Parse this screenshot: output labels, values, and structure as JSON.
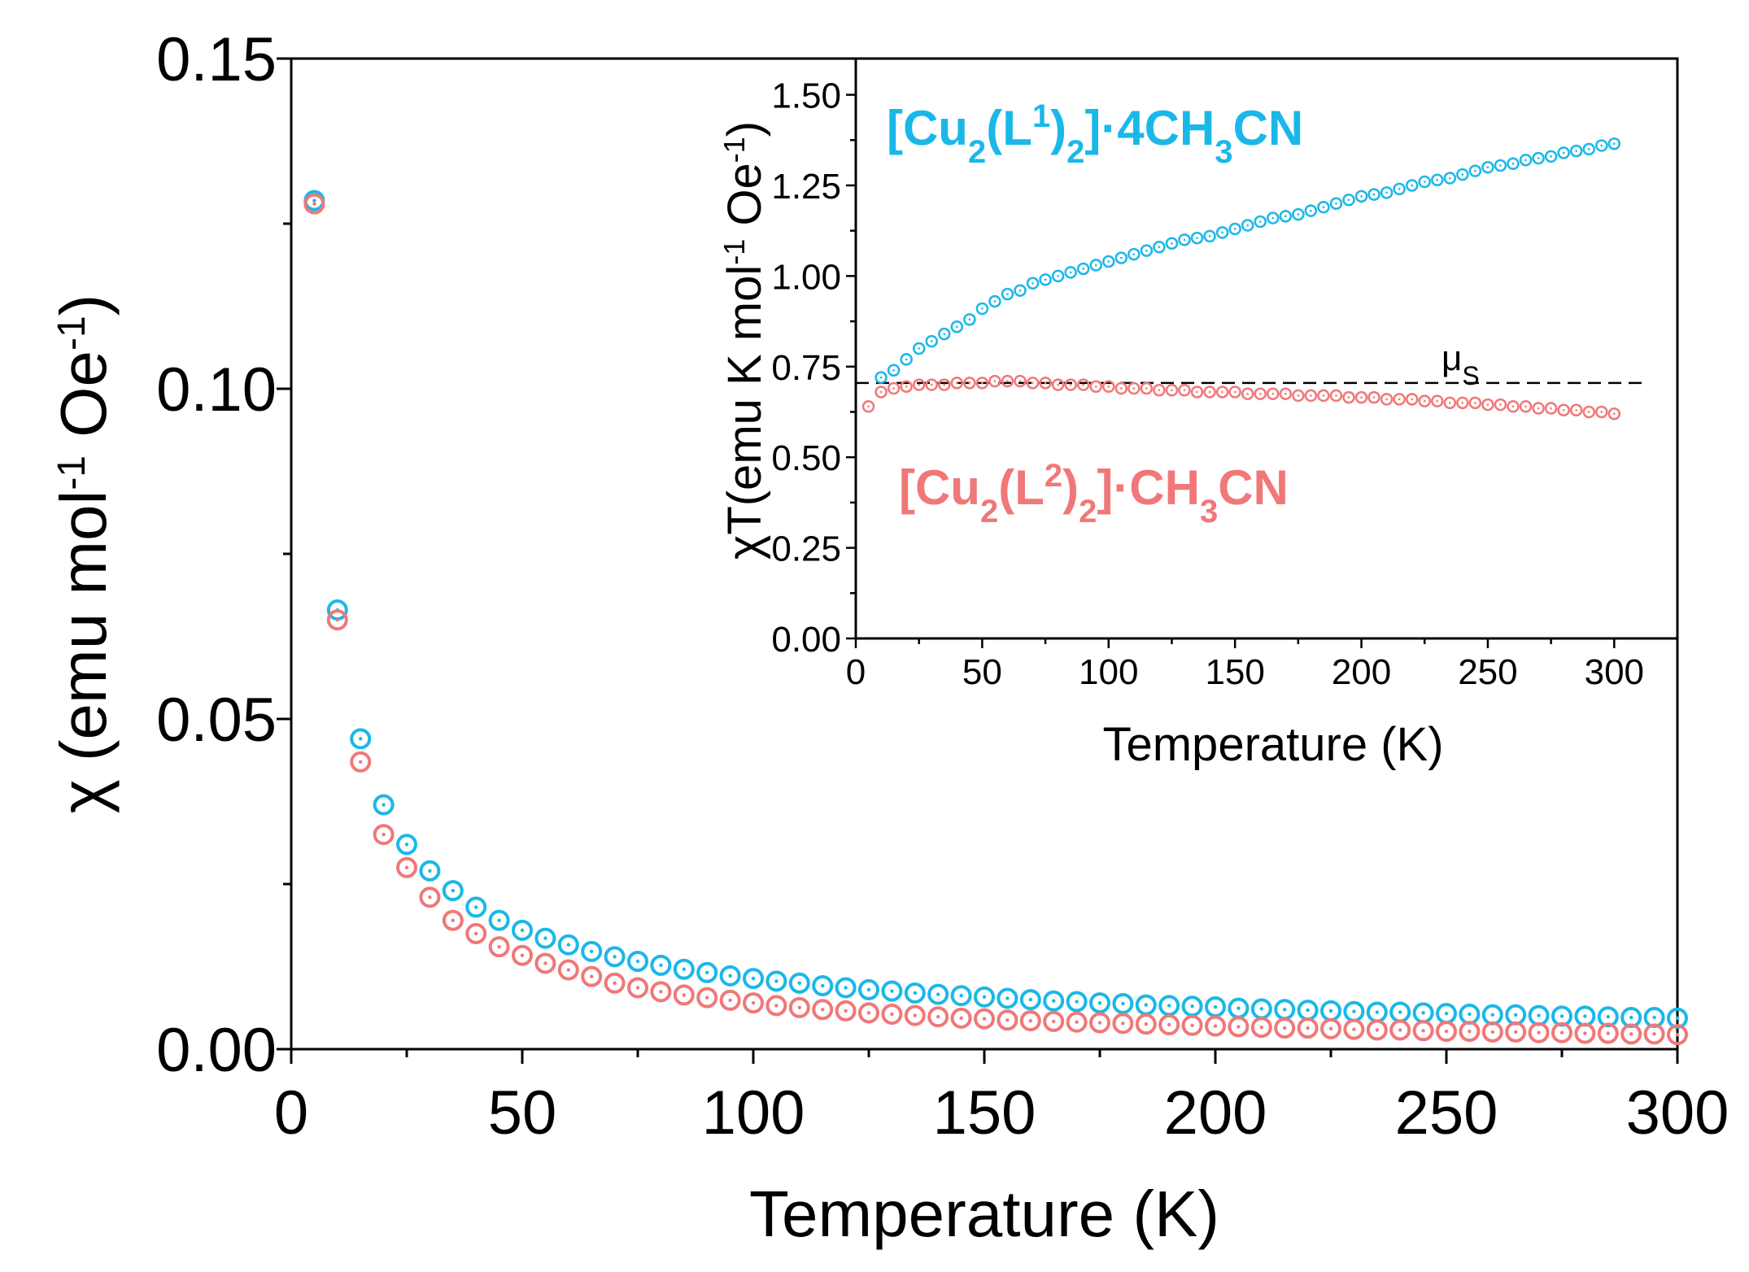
{
  "chart_data": [
    {
      "type": "scatter",
      "xlabel": "Temperature (K)",
      "ylabel": "χ (emu mol⁻¹ Oe⁻¹)",
      "ylabel_parts": {
        "prefix": "χ (emu mol",
        "sup": "-1",
        "suffix": " Oe",
        "sup2": "-1",
        "close": ")"
      },
      "xlim": [
        0,
        300
      ],
      "ylim": [
        0,
        0.15
      ],
      "x_ticks": [
        "0",
        "50",
        "100",
        "150",
        "200",
        "250",
        "300"
      ],
      "y_ticks": [
        "0.00",
        "0.05",
        "0.10",
        "0.15"
      ],
      "x_tick_values": [
        0,
        50,
        100,
        150,
        200,
        250,
        300
      ],
      "y_tick_values": [
        0,
        0.05,
        0.1,
        0.15
      ],
      "grid": false,
      "series": [
        {
          "name": "[Cu2(L1)2]·4CH3CN",
          "color": "#1ab8e8",
          "x": [
            5,
            10,
            15,
            20,
            25,
            30,
            35,
            40,
            45,
            50,
            55,
            60,
            65,
            70,
            75,
            80,
            85,
            90,
            95,
            100,
            105,
            110,
            115,
            120,
            125,
            130,
            135,
            140,
            145,
            150,
            155,
            160,
            165,
            170,
            175,
            180,
            185,
            190,
            195,
            200,
            205,
            210,
            215,
            220,
            225,
            230,
            235,
            240,
            245,
            250,
            255,
            260,
            265,
            270,
            275,
            280,
            285,
            290,
            295,
            300
          ],
          "y": [
            0.1285,
            0.0665,
            0.047,
            0.037,
            0.031,
            0.027,
            0.024,
            0.0215,
            0.0195,
            0.018,
            0.0168,
            0.0158,
            0.0148,
            0.014,
            0.0133,
            0.0127,
            0.0121,
            0.0116,
            0.0111,
            0.0107,
            0.0103,
            0.01,
            0.0096,
            0.0093,
            0.009,
            0.0088,
            0.0085,
            0.0083,
            0.0081,
            0.0079,
            0.0077,
            0.0075,
            0.0073,
            0.0072,
            0.007,
            0.0069,
            0.0067,
            0.0066,
            0.0065,
            0.0064,
            0.0062,
            0.0061,
            0.006,
            0.0059,
            0.0058,
            0.0057,
            0.0056,
            0.0056,
            0.0055,
            0.0054,
            0.0053,
            0.0052,
            0.0052,
            0.0051,
            0.005,
            0.005,
            0.0049,
            0.0048,
            0.0048,
            0.0047
          ]
        },
        {
          "name": "[Cu2(L2)2]·CH3CN",
          "color": "#f07878",
          "x": [
            5,
            10,
            15,
            20,
            25,
            30,
            35,
            40,
            45,
            50,
            55,
            60,
            65,
            70,
            75,
            80,
            85,
            90,
            95,
            100,
            105,
            110,
            115,
            120,
            125,
            130,
            135,
            140,
            145,
            150,
            155,
            160,
            165,
            170,
            175,
            180,
            185,
            190,
            195,
            200,
            205,
            210,
            215,
            220,
            225,
            230,
            235,
            240,
            245,
            250,
            255,
            260,
            265,
            270,
            275,
            280,
            285,
            290,
            295,
            300
          ],
          "y": [
            0.128,
            0.065,
            0.0435,
            0.0325,
            0.0275,
            0.023,
            0.0195,
            0.0175,
            0.0155,
            0.0142,
            0.013,
            0.012,
            0.011,
            0.01,
            0.0093,
            0.0087,
            0.0082,
            0.0078,
            0.0074,
            0.007,
            0.0066,
            0.0063,
            0.006,
            0.0058,
            0.0055,
            0.0053,
            0.0051,
            0.0049,
            0.0047,
            0.0046,
            0.0044,
            0.0043,
            0.0042,
            0.0041,
            0.004,
            0.0039,
            0.0038,
            0.0037,
            0.0036,
            0.0035,
            0.0034,
            0.0033,
            0.0032,
            0.0032,
            0.0031,
            0.003,
            0.0029,
            0.0029,
            0.0028,
            0.0027,
            0.0027,
            0.0026,
            0.0026,
            0.0025,
            0.0025,
            0.0024,
            0.0024,
            0.0023,
            0.0023,
            0.0022
          ]
        }
      ]
    },
    {
      "type": "scatter",
      "xlabel": "Temperature (K)",
      "ylabel": "χT(emu K mol⁻¹ Oe⁻¹)",
      "ylabel_parts": {
        "prefix": "χT(emu K mol",
        "sup": "-1",
        "suffix": " Oe",
        "sup2": "-1",
        "close": ")"
      },
      "xlim": [
        0,
        325
      ],
      "ylim": [
        0,
        1.6
      ],
      "x_ticks": [
        "0",
        "50",
        "100",
        "150",
        "200",
        "250",
        "300"
      ],
      "y_ticks": [
        "0.00",
        "0.25",
        "0.50",
        "0.75",
        "1.00",
        "1.25",
        "1.50"
      ],
      "x_tick_values": [
        0,
        50,
        100,
        150,
        200,
        250,
        300
      ],
      "y_tick_values": [
        0,
        0.25,
        0.5,
        0.75,
        1.0,
        1.25,
        1.5
      ],
      "grid": false,
      "reference_line": {
        "label": "μS",
        "label_main": "μ",
        "label_sub": "S",
        "y": 0.705,
        "style": "dashed"
      },
      "series": [
        {
          "name": "[Cu2(L1)2]·4CH3CN",
          "label_parts": [
            "[Cu",
            "2",
            "(L",
            "1",
            ")",
            "2",
            "]·4CH",
            "3",
            "CN"
          ],
          "color": "#1ab8e8",
          "x": [
            10,
            15,
            20,
            25,
            30,
            35,
            40,
            45,
            50,
            55,
            60,
            65,
            70,
            75,
            80,
            85,
            90,
            95,
            100,
            105,
            110,
            115,
            120,
            125,
            130,
            135,
            140,
            145,
            150,
            155,
            160,
            165,
            170,
            175,
            180,
            185,
            190,
            195,
            200,
            205,
            210,
            215,
            220,
            225,
            230,
            235,
            240,
            245,
            250,
            255,
            260,
            265,
            270,
            275,
            280,
            285,
            290,
            295,
            300
          ],
          "y": [
            0.72,
            0.74,
            0.77,
            0.8,
            0.82,
            0.84,
            0.86,
            0.88,
            0.91,
            0.93,
            0.95,
            0.96,
            0.98,
            0.99,
            1.0,
            1.01,
            1.02,
            1.03,
            1.04,
            1.05,
            1.06,
            1.07,
            1.08,
            1.09,
            1.1,
            1.105,
            1.11,
            1.12,
            1.13,
            1.14,
            1.15,
            1.16,
            1.165,
            1.17,
            1.18,
            1.19,
            1.2,
            1.21,
            1.22,
            1.225,
            1.23,
            1.24,
            1.25,
            1.26,
            1.265,
            1.27,
            1.28,
            1.29,
            1.3,
            1.305,
            1.31,
            1.32,
            1.325,
            1.33,
            1.34,
            1.345,
            1.35,
            1.36,
            1.365
          ]
        },
        {
          "name": "[Cu2(L2)2]·CH3CN",
          "label_parts": [
            "[Cu",
            "2",
            "(L",
            "2",
            ")",
            "2",
            "]·CH",
            "3",
            "CN"
          ],
          "color": "#f07878",
          "x": [
            5,
            10,
            15,
            20,
            25,
            30,
            35,
            40,
            45,
            50,
            55,
            60,
            65,
            70,
            75,
            80,
            85,
            90,
            95,
            100,
            105,
            110,
            115,
            120,
            125,
            130,
            135,
            140,
            145,
            150,
            155,
            160,
            165,
            170,
            175,
            180,
            185,
            190,
            195,
            200,
            205,
            210,
            215,
            220,
            225,
            230,
            235,
            240,
            245,
            250,
            255,
            260,
            265,
            270,
            275,
            280,
            285,
            290,
            295,
            300
          ],
          "y": [
            0.64,
            0.68,
            0.69,
            0.695,
            0.7,
            0.7,
            0.7,
            0.705,
            0.705,
            0.705,
            0.71,
            0.71,
            0.71,
            0.705,
            0.705,
            0.7,
            0.7,
            0.7,
            0.695,
            0.695,
            0.69,
            0.69,
            0.69,
            0.685,
            0.685,
            0.685,
            0.68,
            0.68,
            0.68,
            0.68,
            0.675,
            0.675,
            0.675,
            0.675,
            0.67,
            0.67,
            0.67,
            0.67,
            0.665,
            0.665,
            0.665,
            0.66,
            0.66,
            0.66,
            0.655,
            0.655,
            0.65,
            0.65,
            0.65,
            0.645,
            0.645,
            0.64,
            0.64,
            0.635,
            0.635,
            0.63,
            0.63,
            0.625,
            0.625,
            0.62
          ]
        }
      ]
    }
  ]
}
